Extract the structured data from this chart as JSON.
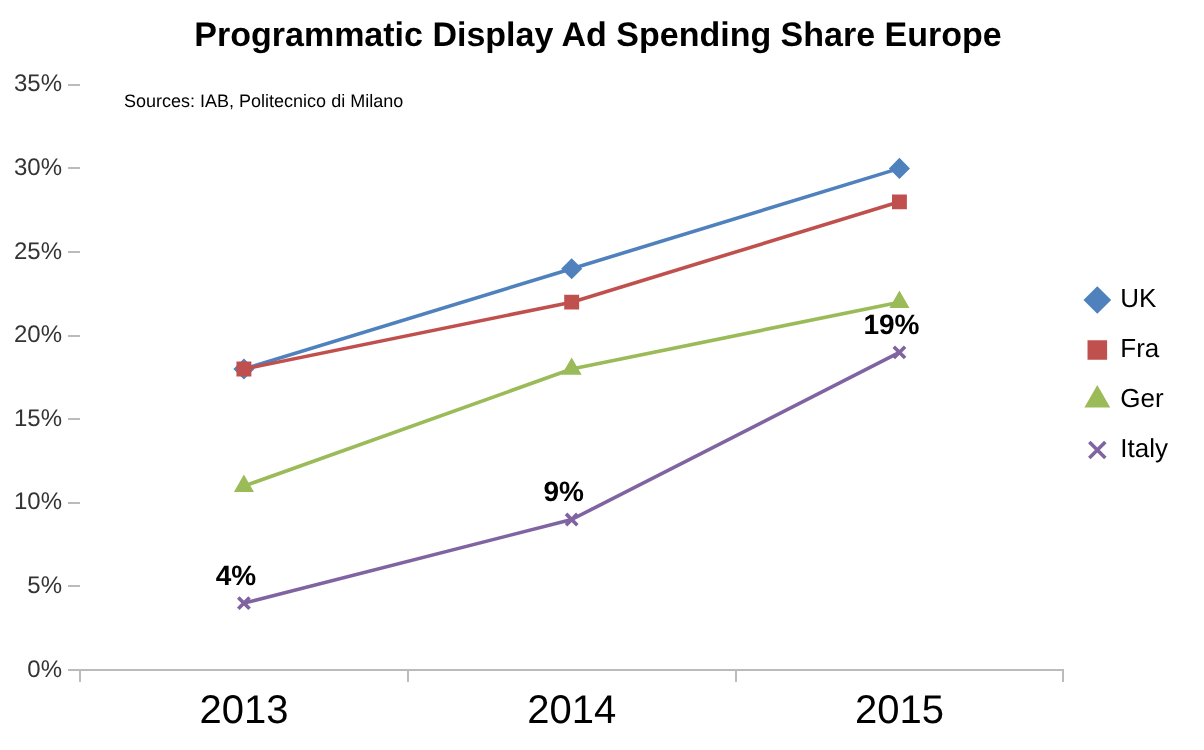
{
  "chart_data": {
    "type": "line",
    "title": "Programmatic Display Ad Spending Share Europe",
    "annotations": [
      "Sources: IAB, Politecnico di Milano"
    ],
    "categories": [
      "2013",
      "2014",
      "2015"
    ],
    "series": [
      {
        "name": "UK",
        "color": "#4f81bd",
        "values": [
          18,
          24,
          30
        ],
        "marker": "diamond"
      },
      {
        "name": "Fra",
        "color": "#c0504d",
        "values": [
          18,
          22,
          28
        ],
        "marker": "square"
      },
      {
        "name": "Ger",
        "color": "#9bbb59",
        "values": [
          11,
          18,
          22
        ],
        "marker": "triangle"
      },
      {
        "name": "Italy",
        "color": "#8064a2",
        "values": [
          4,
          9,
          19
        ],
        "marker": "cross",
        "value_labels": [
          "4%",
          "9%",
          "19%"
        ]
      }
    ],
    "ylim": [
      0,
      35
    ],
    "yticks": [
      {
        "value": 0,
        "label": "0%"
      },
      {
        "value": 5,
        "label": "5%"
      },
      {
        "value": 10,
        "label": "10%"
      },
      {
        "value": 15,
        "label": "15%"
      },
      {
        "value": 20,
        "label": "20%"
      },
      {
        "value": 25,
        "label": "25%"
      },
      {
        "value": 30,
        "label": "30%"
      },
      {
        "value": 35,
        "label": "35%"
      }
    ],
    "grid": false,
    "legend": "right",
    "line_style": "solid"
  }
}
